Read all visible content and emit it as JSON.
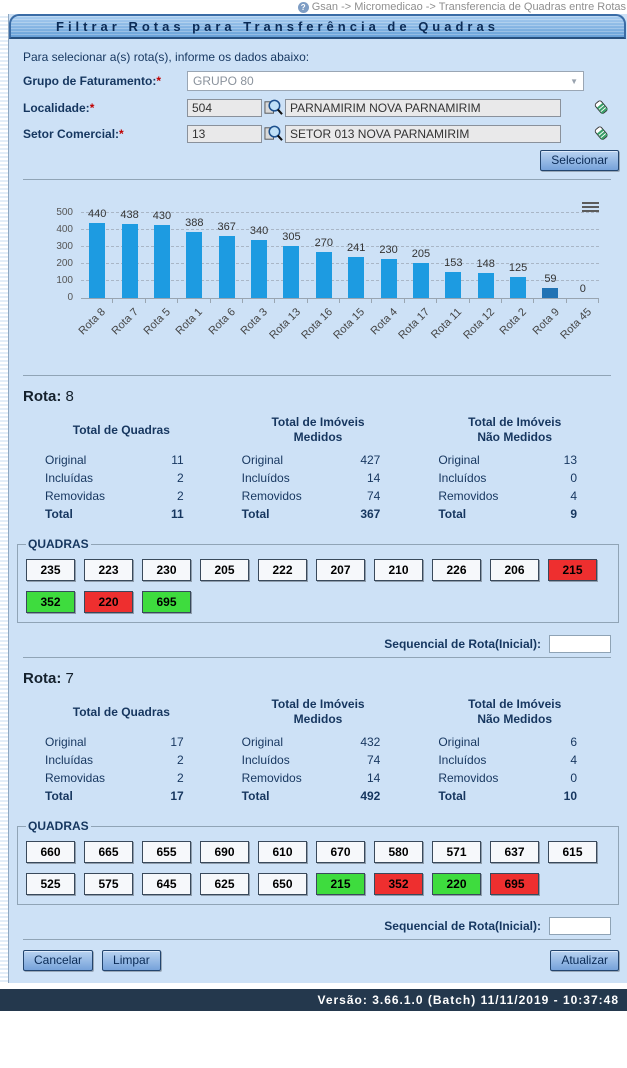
{
  "titlebar": {
    "breadcrumb": "Gsan -> Micromedicao -> Transferencia de Quadras entre Rotas",
    "help_glyph": "?"
  },
  "header": {
    "title": "Filtrar Rotas para Transferência de Quadras"
  },
  "form": {
    "instruction": "Para selecionar a(s) rota(s), informe os dados abaixo:",
    "grupo": {
      "label": "Grupo de Faturamento:",
      "required": "*",
      "value": "GRUPO 80",
      "arrow": "▼"
    },
    "localidade": {
      "label": "Localidade:",
      "required": "*",
      "code": "504",
      "name": "PARNAMIRIM NOVA PARNAMIRIM"
    },
    "setor": {
      "label": "Setor Comercial:",
      "required": "*",
      "code": "13",
      "name": "SETOR 013 NOVA PARNAMIRIM"
    },
    "selecionar_label": "Selecionar"
  },
  "chart_data": {
    "type": "bar",
    "categories": [
      "Rota 8",
      "Rota 7",
      "Rota 5",
      "Rota 1",
      "Rota 6",
      "Rota 3",
      "Rota 13",
      "Rota 16",
      "Rota 15",
      "Rota 4",
      "Rota 17",
      "Rota 11",
      "Rota 12",
      "Rota 2",
      "Rota 9",
      "Rota 45"
    ],
    "values": [
      440,
      438,
      430,
      388,
      367,
      340,
      305,
      270,
      241,
      230,
      205,
      153,
      148,
      125,
      59,
      0
    ],
    "title": "",
    "xlabel": "",
    "ylabel": "",
    "ylim": [
      0,
      500
    ],
    "yticks": [
      0,
      100,
      200,
      300,
      400,
      500
    ],
    "grid": "dashed-horizontal",
    "legend": "none",
    "bar_color": "#1d9be1",
    "highlight_index": 14,
    "highlight_color": "#2173b4"
  },
  "rotas": [
    {
      "label": "Rota:",
      "number": "8",
      "groups": [
        {
          "header_lines": [
            "Total de Quadras"
          ],
          "rows": [
            [
              "Original",
              "11"
            ],
            [
              "Incluídas",
              "2"
            ],
            [
              "Removidas",
              "2"
            ],
            [
              "Total",
              "11"
            ]
          ]
        },
        {
          "header_lines": [
            "Total de Imóveis",
            "Medidos"
          ],
          "rows": [
            [
              "Original",
              "427"
            ],
            [
              "Incluídos",
              "14"
            ],
            [
              "Removidos",
              "74"
            ],
            [
              "Total",
              "367"
            ]
          ]
        },
        {
          "header_lines": [
            "Total de Imóveis",
            "Não Medidos"
          ],
          "rows": [
            [
              "Original",
              "13"
            ],
            [
              "Incluídos",
              "0"
            ],
            [
              "Removidos",
              "4"
            ],
            [
              "Total",
              "9"
            ]
          ]
        }
      ],
      "quadras_legend": "QUADRAS",
      "quadras": [
        {
          "value": "235",
          "state": "default"
        },
        {
          "value": "223",
          "state": "default"
        },
        {
          "value": "230",
          "state": "default"
        },
        {
          "value": "205",
          "state": "default"
        },
        {
          "value": "222",
          "state": "default"
        },
        {
          "value": "207",
          "state": "default"
        },
        {
          "value": "210",
          "state": "default"
        },
        {
          "value": "226",
          "state": "default"
        },
        {
          "value": "206",
          "state": "default"
        },
        {
          "value": "215",
          "state": "red"
        },
        {
          "value": "352",
          "state": "green"
        },
        {
          "value": "220",
          "state": "red"
        },
        {
          "value": "695",
          "state": "green"
        }
      ],
      "sequencial_label": "Sequencial de Rota(Inicial):",
      "sequencial_value": ""
    },
    {
      "label": "Rota:",
      "number": "7",
      "groups": [
        {
          "header_lines": [
            "Total de Quadras"
          ],
          "rows": [
            [
              "Original",
              "17"
            ],
            [
              "Incluídas",
              "2"
            ],
            [
              "Removidas",
              "2"
            ],
            [
              "Total",
              "17"
            ]
          ]
        },
        {
          "header_lines": [
            "Total de Imóveis",
            "Medidos"
          ],
          "rows": [
            [
              "Original",
              "432"
            ],
            [
              "Incluídos",
              "74"
            ],
            [
              "Removidos",
              "14"
            ],
            [
              "Total",
              "492"
            ]
          ]
        },
        {
          "header_lines": [
            "Total de Imóveis",
            "Não Medidos"
          ],
          "rows": [
            [
              "Original",
              "6"
            ],
            [
              "Incluídos",
              "4"
            ],
            [
              "Removidos",
              "0"
            ],
            [
              "Total",
              "10"
            ]
          ]
        }
      ],
      "quadras_legend": "QUADRAS",
      "quadras": [
        {
          "value": "660",
          "state": "default"
        },
        {
          "value": "665",
          "state": "default"
        },
        {
          "value": "655",
          "state": "default"
        },
        {
          "value": "690",
          "state": "default"
        },
        {
          "value": "610",
          "state": "default"
        },
        {
          "value": "670",
          "state": "default"
        },
        {
          "value": "580",
          "state": "default"
        },
        {
          "value": "571",
          "state": "default"
        },
        {
          "value": "637",
          "state": "default"
        },
        {
          "value": "615",
          "state": "default"
        },
        {
          "value": "525",
          "state": "default"
        },
        {
          "value": "575",
          "state": "default"
        },
        {
          "value": "645",
          "state": "default"
        },
        {
          "value": "625",
          "state": "default"
        },
        {
          "value": "650",
          "state": "default"
        },
        {
          "value": "215",
          "state": "green"
        },
        {
          "value": "352",
          "state": "red"
        },
        {
          "value": "220",
          "state": "green"
        },
        {
          "value": "695",
          "state": "red"
        }
      ],
      "sequencial_label": "Sequencial de Rota(Inicial):",
      "sequencial_value": ""
    }
  ],
  "footer_buttons": {
    "cancelar": "Cancelar",
    "limpar": "Limpar",
    "atualizar": "Atualizar"
  },
  "statusbar": {
    "text": "Versão: 3.66.1.0 (Batch) 11/11/2019 - 10:37:48"
  }
}
